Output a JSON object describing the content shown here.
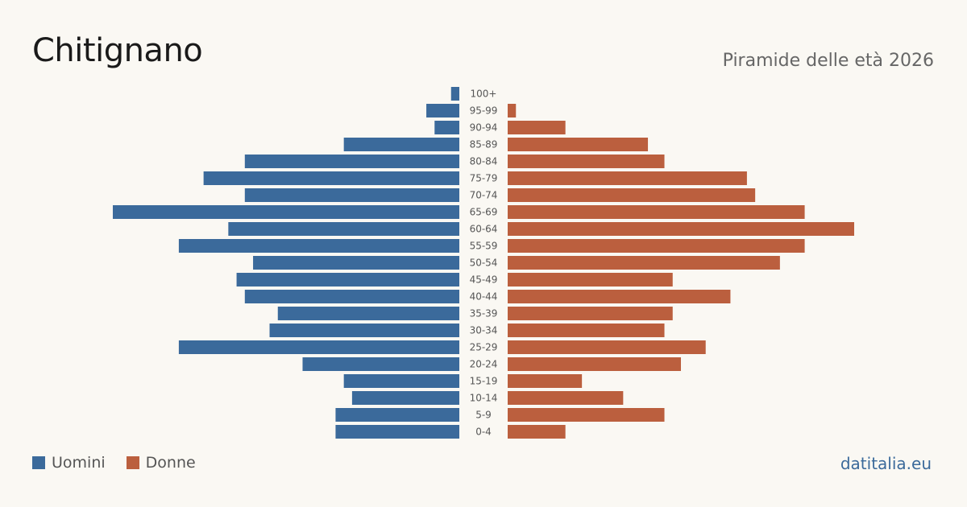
{
  "header": {
    "title": "Chitignano",
    "subtitle": "Piramide delle età 2026"
  },
  "legend": {
    "men_label": "Uomini",
    "women_label": "Donne"
  },
  "brand": "datitalia.eu",
  "colors": {
    "men": "#3b6a9b",
    "women": "#bb5f3e",
    "background": "#faf8f3"
  },
  "chart_data": {
    "type": "bar",
    "orientation": "horizontal",
    "categories": [
      "100+",
      "95-99",
      "90-94",
      "85-89",
      "80-84",
      "75-79",
      "70-74",
      "65-69",
      "60-64",
      "55-59",
      "50-54",
      "45-49",
      "40-44",
      "35-39",
      "30-34",
      "25-29",
      "20-24",
      "15-19",
      "10-14",
      "5-9",
      "0-4"
    ],
    "series": [
      {
        "name": "Uomini",
        "values": [
          1,
          4,
          3,
          14,
          26,
          31,
          26,
          42,
          28,
          34,
          25,
          27,
          26,
          22,
          23,
          34,
          19,
          14,
          13,
          15,
          15
        ]
      },
      {
        "name": "Donne",
        "values": [
          0,
          1,
          7,
          17,
          19,
          29,
          30,
          36,
          42,
          36,
          33,
          20,
          27,
          20,
          19,
          24,
          21,
          9,
          14,
          19,
          7
        ]
      }
    ],
    "xlim": [
      0,
      42
    ]
  }
}
